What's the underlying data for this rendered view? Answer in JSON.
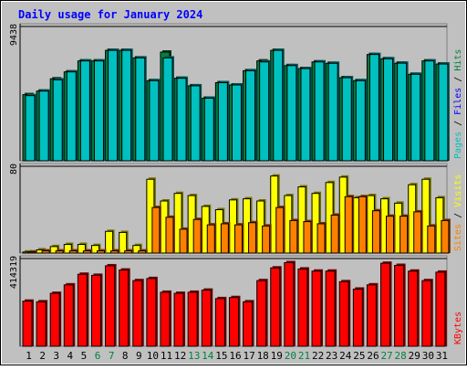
{
  "chart_data": {
    "type": "bar",
    "title": "Daily usage for January 2024",
    "categories": [
      "1",
      "2",
      "3",
      "4",
      "5",
      "6",
      "7",
      "8",
      "9",
      "10",
      "11",
      "12",
      "13",
      "14",
      "15",
      "16",
      "17",
      "18",
      "19",
      "20",
      "21",
      "22",
      "23",
      "24",
      "25",
      "26",
      "27",
      "28",
      "29",
      "30",
      "31"
    ],
    "weekend_days": [
      "6",
      "7",
      "13",
      "14",
      "20",
      "21",
      "27",
      "28"
    ],
    "panels": [
      {
        "id": "top",
        "ymax_label": "9438",
        "ylim": [
          0,
          9438
        ],
        "legend": [
          "Pages",
          "Files",
          "Hits"
        ],
        "legend_colors": [
          "#00c0c0",
          "#0000ff",
          "#008040"
        ],
        "series": [
          {
            "name": "Hits",
            "color": "#008040",
            "values": [
              4650,
              4900,
              5760,
              6250,
              7020,
              7020,
              7760,
              7760,
              7230,
              5630,
              7640,
              5800,
              5270,
              4400,
              5490,
              5330,
              6330,
              7020,
              7760,
              6690,
              6480,
              6950,
              6850,
              5840,
              5630,
              7470,
              7170,
              6860,
              6080,
              7020,
              6800
            ]
          },
          {
            "name": "Files",
            "color": "#00c0c0",
            "values": [
              4580,
              4900,
              5690,
              6250,
              7020,
              7020,
              7760,
              7760,
              7230,
              5630,
              7230,
              5800,
              5270,
              4400,
              5490,
              5330,
              6330,
              6950,
              7760,
              6690,
              6480,
              6950,
              6850,
              5840,
              5630,
              7470,
              7170,
              6860,
              6080,
              7020,
              6800
            ]
          },
          {
            "name": "Pages",
            "color": "#00c0c0",
            "values": [
              0,
              0,
              0,
              0,
              0,
              0,
              0,
              0,
              0,
              0,
              0,
              0,
              0,
              0,
              0,
              0,
              0,
              0,
              0,
              0,
              0,
              0,
              0,
              0,
              0,
              0,
              0,
              0,
              0,
              0,
              0
            ]
          }
        ]
      },
      {
        "id": "middle",
        "ymax_label": "80",
        "ylim": [
          0,
          80
        ],
        "legend": [
          "Sites",
          "Visits"
        ],
        "legend_colors": [
          "#ff8000",
          "#ffff00"
        ],
        "series": [
          {
            "name": "Visits",
            "color": "#ffff00",
            "values": [
              1,
              3,
              6,
              8,
              8,
              7,
              20,
              19,
              7,
              68,
              48,
              55,
              53,
              43,
              40,
              49,
              50,
              48,
              71,
              53,
              61,
              55,
              65,
              70,
              51,
              53,
              50,
              46,
              63,
              68,
              51
            ]
          },
          {
            "name": "Sites",
            "color": "#ff8000",
            "values": [
              1,
              2,
              2,
              2,
              2,
              2,
              2,
              2,
              2,
              42,
              33,
              22,
              31,
              26,
              27,
              26,
              28,
              25,
              42,
              30,
              29,
              27,
              35,
              52,
              52,
              39,
              34,
              34,
              38,
              25,
              30
            ]
          }
        ]
      },
      {
        "id": "bottom",
        "ymax_label": "414319",
        "ylim": [
          0,
          414319
        ],
        "legend": [
          "KBytes"
        ],
        "legend_colors": [
          "#ff0000"
        ],
        "series": [
          {
            "name": "KBytes",
            "color": "#ff0000",
            "values": [
              213000,
              210000,
              250000,
              290000,
              340000,
              335000,
              380000,
              360000,
              310000,
              320000,
              255000,
              250000,
              255000,
              265000,
              225000,
              230000,
              210000,
              310000,
              370000,
              395000,
              365000,
              355000,
              355000,
              305000,
              270000,
              290000,
              392000,
              382000,
              355000,
              310000,
              350000
            ]
          }
        ]
      }
    ]
  }
}
